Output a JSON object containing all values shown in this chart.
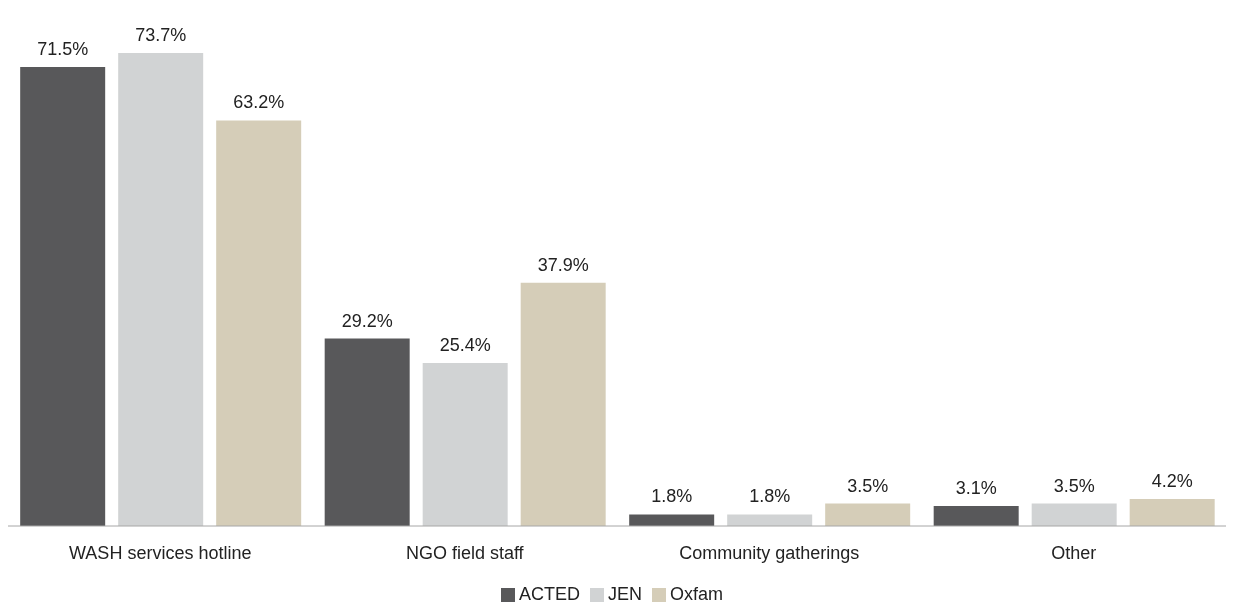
{
  "chart_data": {
    "type": "bar",
    "categories": [
      "WASH services hotline",
      "NGO field staff",
      "Community gatherings",
      "Other"
    ],
    "series": [
      {
        "name": "ACTED",
        "color": "#58585a",
        "values": [
          71.5,
          29.2,
          1.8,
          3.1
        ],
        "value_labels": [
          "71.5%",
          "29.2%",
          "1.8%",
          "3.1%"
        ]
      },
      {
        "name": "JEN",
        "color": "#d1d3d4",
        "values": [
          73.7,
          25.4,
          1.8,
          3.5
        ],
        "value_labels": [
          "73.7%",
          "25.4%",
          "1.8%",
          "3.5%"
        ]
      },
      {
        "name": "Oxfam",
        "color": "#d5cdb8",
        "values": [
          63.2,
          37.9,
          3.5,
          4.2
        ],
        "value_labels": [
          "63.2%",
          "37.9%",
          "3.5%",
          "4.2%"
        ]
      }
    ],
    "legend": "bottom",
    "grid": false
  }
}
